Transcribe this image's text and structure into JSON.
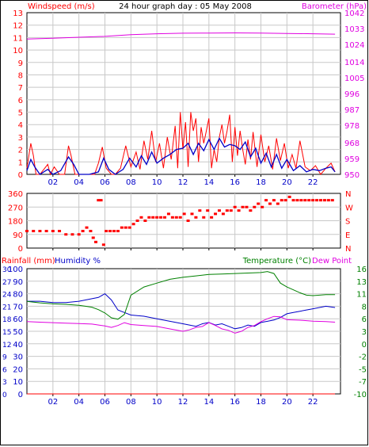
{
  "title": "24 hour graph day : 05 May 2008",
  "colors": {
    "red": "#ff0000",
    "blue": "#0000c8",
    "magenta": "#e000e0",
    "green": "#008000",
    "grid": "#c8c8c8",
    "axis": "#000000"
  },
  "x_tick_labels": [
    "02",
    "04",
    "06",
    "08",
    "10",
    "12",
    "14",
    "16",
    "18",
    "20",
    "22"
  ],
  "chart_data": [
    {
      "type": "line",
      "panel": "wind-barometer",
      "left_label": "Windspeed (m/s)",
      "right_label": "Barometer (hPa)",
      "left_ticks": [
        "0",
        "1",
        "2",
        "3",
        "4",
        "5",
        "6",
        "7",
        "8",
        "9",
        "10",
        "11",
        "12",
        "13"
      ],
      "right_ticks": [
        "950",
        "959",
        "968",
        "978",
        "987",
        "996",
        "1005",
        "1014",
        "1024",
        "1033",
        "1042"
      ],
      "left_ylim": [
        0,
        13
      ],
      "right_ylim": [
        950,
        1042
      ],
      "grid": true,
      "series": [
        {
          "axis": "right",
          "color": "magenta",
          "x": [
            0,
            2,
            4,
            6,
            8,
            10,
            12,
            14,
            16,
            18,
            20,
            22,
            23.7
          ],
          "values": [
            1027,
            1027.5,
            1028,
            1028.5,
            1029.5,
            1030,
            1030.3,
            1030.4,
            1030.5,
            1030.4,
            1030.2,
            1030,
            1029.8
          ]
        },
        {
          "axis": "left",
          "color": "red",
          "style": "gust",
          "x": [
            0,
            0.3,
            0.5,
            0.7,
            1.0,
            1.6,
            1.8,
            2.1,
            2.5,
            2.9,
            3.2,
            3.4,
            3.7,
            4.0,
            4.6,
            5.2,
            5.5,
            5.8,
            6.1,
            6.5,
            6.8,
            7.2,
            7.6,
            8.0,
            8.4,
            8.7,
            9.0,
            9.3,
            9.6,
            9.9,
            10.2,
            10.5,
            10.8,
            11.1,
            11.4,
            11.6,
            11.8,
            12.0,
            12.2,
            12.4,
            12.6,
            12.8,
            13.0,
            13.2,
            13.4,
            13.6,
            13.8,
            14.0,
            14.2,
            14.4,
            14.6,
            14.8,
            15.0,
            15.2,
            15.4,
            15.6,
            15.8,
            16.0,
            16.2,
            16.4,
            16.6,
            16.8,
            17.0,
            17.2,
            17.4,
            17.7,
            18.0,
            18.3,
            18.6,
            18.9,
            19.2,
            19.5,
            19.8,
            20.1,
            20.4,
            20.7,
            21.0,
            21.4,
            21.8,
            22.2,
            22.6,
            23.0,
            23.4,
            23.7
          ],
          "values": [
            0.5,
            2.5,
            1.5,
            0,
            0,
            0.8,
            0,
            0.6,
            0,
            0,
            2.3,
            1.5,
            0,
            0,
            0,
            0,
            0.9,
            2.2,
            0.5,
            0,
            0,
            0.5,
            2.3,
            0.6,
            1.8,
            0.4,
            2.7,
            1.2,
            3.5,
            1.0,
            2.5,
            0.5,
            3.0,
            1.2,
            3.9,
            0.5,
            5.0,
            2.0,
            4.2,
            0.6,
            5.0,
            3.5,
            4.5,
            1.0,
            3.8,
            2.5,
            3.5,
            4.5,
            0.5,
            2.0,
            1.0,
            3.0,
            4.0,
            2.5,
            3.5,
            4.8,
            1.0,
            3.8,
            1.5,
            3.5,
            2.0,
            0.8,
            2.8,
            1.2,
            3.4,
            0.6,
            3.2,
            1.0,
            2.3,
            0.4,
            2.9,
            1.1,
            2.5,
            0.5,
            1.6,
            0.5,
            2.7,
            0.6,
            0.3,
            0.7,
            0,
            0.5,
            0.9,
            0.2
          ]
        },
        {
          "axis": "left",
          "color": "blue",
          "style": "average",
          "x": [
            0,
            0.3,
            0.6,
            1.0,
            1.6,
            2.0,
            2.6,
            3.2,
            3.6,
            4.0,
            4.8,
            5.5,
            5.9,
            6.3,
            6.8,
            7.4,
            7.9,
            8.4,
            8.8,
            9.2,
            9.6,
            10.0,
            10.5,
            11.0,
            11.5,
            12.0,
            12.4,
            12.8,
            13.2,
            13.6,
            14.0,
            14.4,
            14.8,
            15.2,
            15.6,
            16.0,
            16.4,
            16.8,
            17.2,
            17.6,
            18.0,
            18.4,
            18.8,
            19.2,
            19.6,
            20.0,
            20.5,
            21.0,
            21.5,
            22.0,
            22.5,
            23.0,
            23.4,
            23.7
          ],
          "values": [
            0.3,
            1.2,
            0.6,
            0,
            0.4,
            0,
            0.3,
            1.4,
            0.8,
            0,
            0,
            0.2,
            1.3,
            0.4,
            0,
            0.4,
            1.3,
            0.6,
            1.5,
            0.8,
            1.8,
            0.9,
            1.3,
            1.6,
            2.0,
            2.1,
            2.5,
            1.6,
            2.5,
            1.9,
            2.8,
            2.0,
            2.9,
            2.2,
            2.4,
            2.3,
            2.0,
            2.6,
            1.4,
            2.1,
            0.9,
            1.7,
            0.6,
            1.6,
            0.5,
            1.2,
            0.3,
            0.7,
            0.2,
            0.4,
            0.3,
            0.5,
            0.6,
            0.2
          ]
        }
      ]
    },
    {
      "type": "scatter",
      "panel": "wind-direction",
      "left_ticks": [
        "0",
        "90",
        "180",
        "270",
        "360"
      ],
      "right_ticks": [
        "N",
        "E",
        "S",
        "W",
        "N"
      ],
      "ylim": [
        0,
        360
      ],
      "grid": true,
      "series": [
        {
          "color": "red",
          "x": [
            0,
            0.5,
            1.0,
            1.5,
            2.0,
            2.5,
            3.0,
            3.5,
            4.0,
            4.3,
            4.6,
            4.9,
            5.1,
            5.3,
            5.5,
            5.7,
            5.9,
            6.1,
            6.4,
            6.7,
            7.0,
            7.3,
            7.6,
            7.9,
            8.2,
            8.5,
            8.8,
            9.1,
            9.4,
            9.7,
            10.0,
            10.3,
            10.6,
            10.9,
            11.2,
            11.5,
            11.8,
            12.1,
            12.4,
            12.7,
            13.0,
            13.3,
            13.6,
            13.9,
            14.2,
            14.5,
            14.8,
            15.1,
            15.4,
            15.7,
            16.0,
            16.3,
            16.6,
            16.9,
            17.2,
            17.5,
            17.8,
            18.1,
            18.4,
            18.7,
            19.0,
            19.3,
            19.6,
            19.9,
            20.2,
            20.5,
            20.8,
            21.1,
            21.4,
            21.7,
            22.0,
            22.3,
            22.6,
            22.9,
            23.2,
            23.5
          ],
          "values": [
            112,
            112,
            112,
            112,
            112,
            112,
            90,
            90,
            90,
            112,
            135,
            112,
            68,
            40,
            315,
            315,
            22,
            112,
            112,
            112,
            112,
            135,
            135,
            135,
            158,
            180,
            202,
            180,
            202,
            202,
            202,
            202,
            202,
            225,
            202,
            202,
            202,
            225,
            180,
            225,
            202,
            247,
            202,
            247,
            202,
            225,
            247,
            225,
            247,
            247,
            270,
            247,
            270,
            270,
            247,
            270,
            292,
            270,
            315,
            292,
            315,
            292,
            315,
            315,
            337,
            315,
            315,
            315,
            315,
            315,
            315,
            315,
            315,
            315,
            315,
            315
          ]
        }
      ]
    },
    {
      "type": "line",
      "panel": "rain-humidity-temperature",
      "labels": {
        "rainfall": "Rainfall (mm)",
        "humidity": "Humidity %",
        "temperature": "Temperature (°C)",
        "dew_point": "Dew Point"
      },
      "left_outer_ticks": [
        "0",
        "3",
        "6",
        "9",
        "12",
        "15",
        "18",
        "21",
        "24",
        "27",
        "30"
      ],
      "left_inner_ticks": [
        "0",
        "10",
        "20",
        "30",
        "40",
        "50",
        "60",
        "70",
        "80",
        "90",
        "100"
      ],
      "right_ticks": [
        "-10",
        "-7",
        "-5",
        "-2",
        "0",
        "3",
        "6",
        "8",
        "11",
        "13",
        "16"
      ],
      "humidity_ylim": [
        0,
        100
      ],
      "temperature_ylim": [
        -10,
        16
      ],
      "grid": true,
      "series": [
        {
          "axis": "left-outer",
          "color": "red",
          "name": "Rainfall (mm)",
          "x": [
            0,
            23.7
          ],
          "values": [
            0,
            0
          ]
        },
        {
          "axis": "left-inner",
          "color": "blue",
          "name": "Humidity %",
          "x": [
            0,
            1,
            2,
            3,
            4,
            4.5,
            5,
            5.5,
            6,
            6.5,
            7,
            7.5,
            8,
            9,
            10,
            11,
            12,
            12.5,
            13,
            13.5,
            14,
            14.5,
            15,
            15.5,
            16,
            16.5,
            17,
            17.5,
            18,
            18.5,
            19,
            19.5,
            20,
            20.5,
            21,
            21.5,
            22,
            22.5,
            23,
            23.7
          ],
          "values": [
            74,
            74,
            73,
            73,
            74,
            75,
            76,
            77,
            80,
            75,
            67,
            65,
            63,
            62,
            60,
            58,
            56,
            55,
            54,
            56,
            57,
            55,
            56,
            54,
            52,
            53,
            55,
            54,
            57,
            58,
            59,
            61,
            64,
            65,
            66,
            67,
            68,
            69,
            70,
            69
          ]
        },
        {
          "axis": "right",
          "color": "green",
          "name": "Temperature (°C)",
          "x": [
            0,
            1,
            2,
            3,
            4,
            4.5,
            5,
            5.5,
            6,
            6.5,
            7,
            7.5,
            8,
            9,
            10,
            11,
            12,
            13,
            14,
            15,
            16,
            17,
            18,
            18.5,
            19,
            19.5,
            20,
            20.5,
            21,
            21.5,
            22,
            22.5,
            23,
            23.7
          ],
          "values": [
            9.2,
            8.9,
            8.7,
            8.6,
            8.4,
            8.2,
            8.0,
            7.5,
            6.8,
            5.8,
            5.5,
            6.5,
            10.5,
            12.2,
            13.0,
            13.8,
            14.2,
            14.5,
            14.8,
            14.9,
            15.0,
            15.1,
            15.2,
            15.4,
            15.0,
            13.0,
            12.2,
            11.6,
            11.0,
            10.5,
            10.4,
            10.5,
            10.6,
            10.6
          ]
        },
        {
          "axis": "right",
          "color": "magenta",
          "name": "Dew Point",
          "x": [
            0,
            1,
            2,
            3,
            4,
            5,
            6,
            6.5,
            7,
            7.5,
            8,
            9,
            10,
            11,
            12,
            12.5,
            13,
            13.5,
            14,
            14.5,
            15,
            15.5,
            16,
            16.5,
            17,
            17.5,
            18,
            18.5,
            19,
            19.5,
            20,
            21,
            22,
            23,
            23.7
          ],
          "values": [
            5.0,
            4.9,
            4.8,
            4.7,
            4.6,
            4.5,
            4.1,
            3.8,
            4.2,
            4.8,
            4.4,
            4.2,
            4.0,
            3.5,
            3.0,
            3.3,
            3.8,
            4.0,
            4.8,
            4.2,
            3.5,
            3.2,
            2.6,
            3.0,
            3.8,
            4.2,
            5.0,
            5.6,
            6.1,
            6.0,
            5.4,
            5.3,
            5.1,
            5.0,
            4.9
          ]
        }
      ]
    }
  ]
}
